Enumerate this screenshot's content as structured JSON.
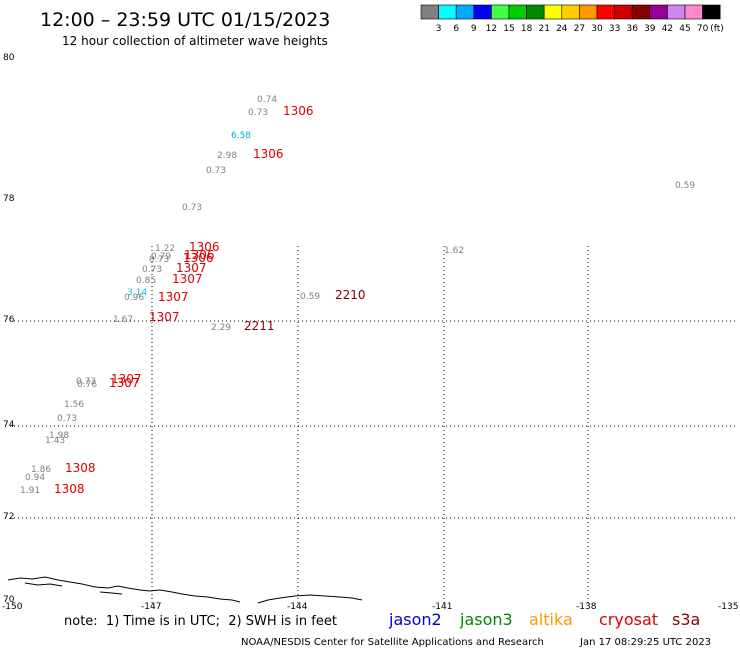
{
  "header": {
    "title": "12:00 – 23:59 UTC 01/15/2023",
    "subtitle": "12 hour collection of altimeter wave heights"
  },
  "color_scale": {
    "unit_label": "(ft)",
    "bins": [
      {
        "label": "3",
        "color": "#808080"
      },
      {
        "label": "6",
        "color": "#00ffff"
      },
      {
        "label": "9",
        "color": "#00aaff"
      },
      {
        "label": "12",
        "color": "#0000ff"
      },
      {
        "label": "15",
        "color": "#40ff40"
      },
      {
        "label": "18",
        "color": "#00cc00"
      },
      {
        "label": "21",
        "color": "#008800"
      },
      {
        "label": "24",
        "color": "#ffff00"
      },
      {
        "label": "27",
        "color": "#ffcc00"
      },
      {
        "label": "30",
        "color": "#ff9900"
      },
      {
        "label": "33",
        "color": "#ff0000"
      },
      {
        "label": "36",
        "color": "#cc0000"
      },
      {
        "label": "39",
        "color": "#880000"
      },
      {
        "label": "42",
        "color": "#990099"
      },
      {
        "label": "45",
        "color": "#cc88ee"
      },
      {
        "label": "70",
        "color": "#ff88cc"
      },
      {
        "label": "",
        "color": "#000000"
      }
    ]
  },
  "axes": {
    "lat_labels": [
      "80",
      "78",
      "76",
      "74",
      "72",
      "70"
    ],
    "lon_labels": [
      "-150",
      "-147",
      "-144",
      "-141",
      "-138",
      "-135"
    ]
  },
  "observations": [
    {
      "value": "0.74",
      "color": "#808080"
    },
    {
      "value": "0.73",
      "color": "#808080"
    },
    {
      "value": "1306",
      "color": "#dd0000"
    },
    {
      "value": "6.58",
      "color": "#00aadd"
    },
    {
      "value": "2.98",
      "color": "#808080"
    },
    {
      "value": "1306",
      "color": "#dd0000"
    },
    {
      "value": "0.73",
      "color": "#808080"
    },
    {
      "value": "0.59",
      "color": "#808080"
    },
    {
      "value": "0.73",
      "color": "#808080"
    },
    {
      "value": "1.62",
      "color": "#808080"
    },
    {
      "value": "1.22",
      "color": "#808080"
    },
    {
      "value": "1306",
      "color": "#dd0000"
    },
    {
      "value": "0.79",
      "color": "#808080"
    },
    {
      "value": "1306",
      "color": "#dd0000"
    },
    {
      "value": "0.73",
      "color": "#808080"
    },
    {
      "value": "1306",
      "color": "#dd0000"
    },
    {
      "value": "0.73",
      "color": "#808080"
    },
    {
      "value": "1307",
      "color": "#dd0000"
    },
    {
      "value": "0.85",
      "color": "#808080"
    },
    {
      "value": "1307",
      "color": "#dd0000"
    },
    {
      "value": "3.14",
      "color": "#00ccee"
    },
    {
      "value": "0.96",
      "color": "#808080"
    },
    {
      "value": "1307",
      "color": "#dd0000"
    },
    {
      "value": "0.59",
      "color": "#808080"
    },
    {
      "value": "2210",
      "color": "#880000"
    },
    {
      "value": "1.67",
      "color": "#808080"
    },
    {
      "value": "1307",
      "color": "#dd0000"
    },
    {
      "value": "2.29",
      "color": "#808080"
    },
    {
      "value": "2211",
      "color": "#880000"
    },
    {
      "value": "0.73",
      "color": "#808080"
    },
    {
      "value": "1307",
      "color": "#dd0000"
    },
    {
      "value": "0.76",
      "color": "#808080"
    },
    {
      "value": "1307",
      "color": "#dd0000"
    },
    {
      "value": "1.56",
      "color": "#808080"
    },
    {
      "value": "0.73",
      "color": "#808080"
    },
    {
      "value": "1.98",
      "color": "#808080"
    },
    {
      "value": "1.43",
      "color": "#808080"
    },
    {
      "value": "1.86",
      "color": "#808080"
    },
    {
      "value": "1308",
      "color": "#dd0000"
    },
    {
      "value": "0.94",
      "color": "#808080"
    },
    {
      "value": "1.91",
      "color": "#808080"
    },
    {
      "value": "1308",
      "color": "#dd0000"
    }
  ],
  "footer": {
    "note": "note:  1) Time is in UTC;  2) SWH is in feet",
    "satellites": [
      {
        "name": "jason2",
        "color": "#0000dd"
      },
      {
        "name": "jason3",
        "color": "#008800"
      },
      {
        "name": "altika",
        "color": "#ff9900"
      },
      {
        "name": "cryosat",
        "color": "#dd0000"
      },
      {
        "name": "s3a",
        "color": "#880000"
      }
    ],
    "credit": "NOAA/NESDIS Center for Satellite Applications and Research",
    "timestamp": "Jan 17 08:29:25 UTC 2023"
  }
}
